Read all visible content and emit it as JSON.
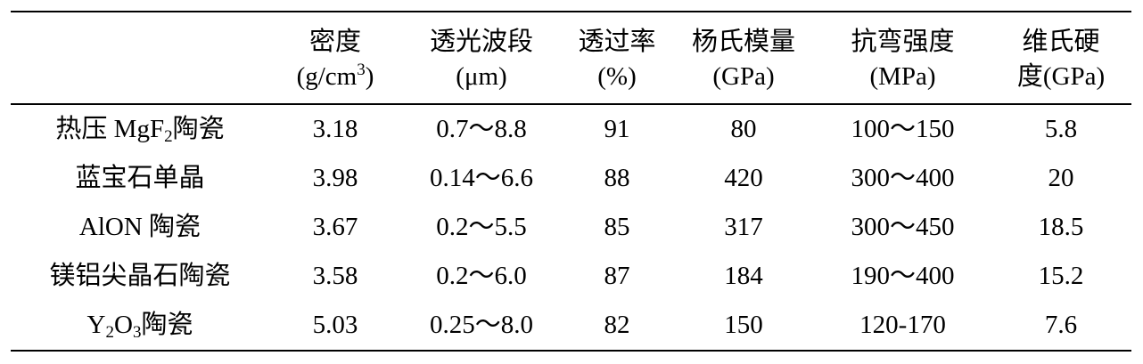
{
  "header": {
    "col0": "",
    "density_line1": "密度",
    "density_line2_pre": "(g/cm",
    "density_line2_sup": "3",
    "density_line2_post": ")",
    "band_line1": "透光波段",
    "band_line2": "(μm)",
    "trans_line1": "透过率",
    "trans_line2": "(%)",
    "modulus_line1": "杨氏模量",
    "modulus_line2": "(GPa)",
    "flex_line1": "抗弯强度",
    "flex_line2": "(MPa)",
    "hard_line1": "维氏硬",
    "hard_line2": "度(GPa)"
  },
  "rows": [
    {
      "name_pre": "热压 MgF",
      "name_sub": "2",
      "name_post": "陶瓷",
      "density": "3.18",
      "band": "0.7～8.8",
      "transmittance": "91",
      "modulus": "80",
      "flexural": "100～150",
      "hardness": "5.8"
    },
    {
      "name": "蓝宝石单晶",
      "density": "3.98",
      "band": "0.14～6.6",
      "transmittance": "88",
      "modulus": "420",
      "flexural": "300～400",
      "hardness": "20"
    },
    {
      "name": "AlON 陶瓷",
      "density": "3.67",
      "band": "0.2～5.5",
      "transmittance": "85",
      "modulus": "317",
      "flexural": "300～450",
      "hardness": "18.5"
    },
    {
      "name": "镁铝尖晶石陶瓷",
      "density": "3.58",
      "band": "0.2～6.0",
      "transmittance": "87",
      "modulus": "184",
      "flexural": "190～400",
      "hardness": "15.2"
    },
    {
      "name_pre": "Y",
      "name_sub": "2",
      "name_mid": "O",
      "name_sub2": "3",
      "name_post": "陶瓷",
      "density": "5.03",
      "band": "0.25～8.0",
      "transmittance": "82",
      "modulus": "150",
      "flexural": "120-170",
      "hardness": "7.6"
    }
  ]
}
